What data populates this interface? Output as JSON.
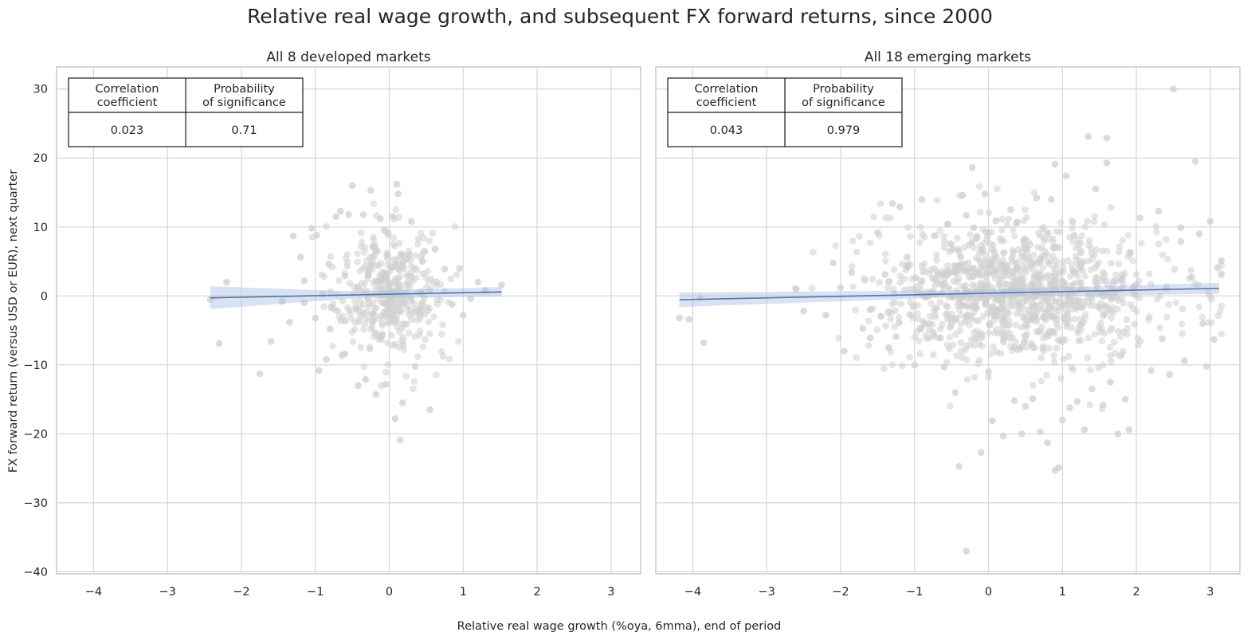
{
  "figure": {
    "title": "Relative real wage growth, and subsequent FX forward returns, since 2000",
    "xlabel": "Relative real wage growth (%oya, 6mma), end of period",
    "ylabel": "FX forward return (versus USD or EUR), next quarter"
  },
  "colors": {
    "scatter": "#cfcfcf",
    "regression": "#5875a4",
    "band": "#a9bfe2",
    "grid": "#d9d9d9",
    "frame": "#cccccc"
  },
  "chart_data": [
    {
      "type": "scatter",
      "title": "All 8 developed markets",
      "xlim": [
        -4.5,
        3.4
      ],
      "ylim": [
        -40.3,
        33.2
      ],
      "xticks": [
        "−4",
        "−3",
        "−2",
        "−1",
        "0",
        "1",
        "2",
        "3"
      ],
      "xtick_values": [
        -4,
        -3,
        -2,
        -1,
        0,
        1,
        2,
        3
      ],
      "yticks": [
        "30",
        "20",
        "10",
        "0",
        "−10",
        "−20",
        "−30",
        "−40"
      ],
      "ytick_values": [
        30,
        20,
        10,
        0,
        -10,
        -20,
        -30,
        -40
      ],
      "grid": true,
      "regression": {
        "x": [
          -2.42,
          1.52
        ],
        "y": [
          -0.28,
          0.58
        ],
        "band_low": [
          -1.9,
          -0.1
        ],
        "band_high": [
          1.4,
          1.3
        ]
      },
      "table": {
        "headers": [
          "Correlation coefficient",
          "Probability of significance"
        ],
        "values": [
          "0.023",
          "0.71"
        ]
      },
      "points": [
        [
          -2.42,
          -0.5
        ],
        [
          -2.2,
          2.0
        ],
        [
          -2.3,
          -6.9
        ],
        [
          -1.75,
          -11.3
        ],
        [
          -1.6,
          -6.6
        ],
        [
          -1.45,
          -0.8
        ],
        [
          -1.3,
          8.7
        ],
        [
          -1.2,
          5.6
        ],
        [
          -1.15,
          2.2
        ],
        [
          -1.05,
          9.8
        ],
        [
          -1.0,
          -3.2
        ],
        [
          -0.98,
          8.8
        ],
        [
          -0.95,
          -10.8
        ],
        [
          -0.85,
          -9.2
        ],
        [
          -0.82,
          4.6
        ],
        [
          -0.8,
          -4.8
        ],
        [
          -0.72,
          11.5
        ],
        [
          -0.66,
          12.3
        ],
        [
          -0.6,
          -8.4
        ],
        [
          -0.55,
          11.8
        ],
        [
          -0.5,
          16.0
        ],
        [
          -0.42,
          -13.0
        ],
        [
          -0.35,
          11.8
        ],
        [
          -0.32,
          -12.1
        ],
        [
          -0.25,
          15.3
        ],
        [
          -0.18,
          -14.3
        ],
        [
          -0.12,
          11.2
        ],
        [
          -0.05,
          -12.8
        ],
        [
          0.05,
          11.5
        ],
        [
          0.1,
          16.2
        ],
        [
          0.12,
          14.8
        ],
        [
          0.15,
          -20.9
        ],
        [
          0.18,
          -15.5
        ],
        [
          0.08,
          -17.8
        ],
        [
          0.3,
          10.8
        ],
        [
          0.35,
          -10.2
        ],
        [
          0.45,
          5.0
        ],
        [
          0.55,
          -16.5
        ],
        [
          0.62,
          6.8
        ],
        [
          0.75,
          3.9
        ],
        [
          0.85,
          -1.2
        ],
        [
          0.95,
          4.0
        ],
        [
          1.0,
          -2.8
        ],
        [
          1.1,
          -0.4
        ],
        [
          1.2,
          2.0
        ],
        [
          1.3,
          0.8
        ],
        [
          1.52,
          1.6
        ],
        [
          -1.15,
          -1.0
        ],
        [
          -0.9,
          0.3
        ],
        [
          -0.7,
          -2.2
        ],
        [
          -0.6,
          2.9
        ],
        [
          -1.35,
          -3.8
        ]
      ],
      "cluster": {
        "cx": 0.0,
        "cy": 0.3,
        "sx": 0.34,
        "sy": 4.6,
        "n": 420
      }
    },
    {
      "type": "scatter",
      "title": "All 18 emerging markets",
      "xlim": [
        -4.5,
        3.4
      ],
      "ylim": [
        -40.3,
        33.2
      ],
      "xticks": [
        "−4",
        "−3",
        "−2",
        "−1",
        "0",
        "1",
        "2",
        "3"
      ],
      "xtick_values": [
        -4,
        -3,
        -2,
        -1,
        0,
        1,
        2,
        3
      ],
      "yticks": [],
      "ytick_values": [
        30,
        20,
        10,
        0,
        -10,
        -20,
        -30,
        -40
      ],
      "grid": true,
      "regression": {
        "x": [
          -4.18,
          3.12
        ],
        "y": [
          -0.55,
          1.1
        ],
        "band_low": [
          -1.6,
          0.3
        ],
        "band_high": [
          0.5,
          1.9
        ]
      },
      "table": {
        "headers": [
          "Correlation coefficient",
          "Probability of significance"
        ],
        "values": [
          "0.043",
          "0.979"
        ]
      },
      "points": [
        [
          -4.18,
          -3.2
        ],
        [
          -4.05,
          -3.4
        ],
        [
          -3.9,
          -0.3
        ],
        [
          -3.85,
          -6.8
        ],
        [
          -2.6,
          1.0
        ],
        [
          -2.5,
          -2.2
        ],
        [
          -2.2,
          -2.8
        ],
        [
          -2.1,
          4.8
        ],
        [
          -1.85,
          3.4
        ],
        [
          -1.7,
          -4.7
        ],
        [
          -1.6,
          -6.1
        ],
        [
          -1.5,
          9.2
        ],
        [
          -1.4,
          3.1
        ],
        [
          -1.35,
          -7.5
        ],
        [
          -1.3,
          13.4
        ],
        [
          -1.2,
          12.9
        ],
        [
          -1.1,
          5.6
        ],
        [
          -1.0,
          -10.0
        ],
        [
          -0.9,
          14.0
        ],
        [
          -0.8,
          -4.0
        ],
        [
          -0.55,
          10.4
        ],
        [
          -0.45,
          -14.0
        ],
        [
          -0.4,
          6.5
        ],
        [
          -0.35,
          14.6
        ],
        [
          -0.3,
          11.7
        ],
        [
          -0.22,
          18.6
        ],
        [
          -0.3,
          -37.0
        ],
        [
          -0.4,
          -24.7
        ],
        [
          -0.2,
          9.9
        ],
        [
          -0.1,
          -22.7
        ],
        [
          -0.05,
          14.8
        ],
        [
          0.05,
          -18.1
        ],
        [
          0.1,
          10.9
        ],
        [
          0.2,
          -20.3
        ],
        [
          0.3,
          12.5
        ],
        [
          0.35,
          -15.2
        ],
        [
          0.45,
          -20.0
        ],
        [
          0.5,
          -16.0
        ],
        [
          0.6,
          -14.9
        ],
        [
          0.65,
          14.2
        ],
        [
          0.7,
          -19.7
        ],
        [
          0.8,
          -21.3
        ],
        [
          0.85,
          14.0
        ],
        [
          0.9,
          19.1
        ],
        [
          0.9,
          -25.3
        ],
        [
          0.95,
          -24.9
        ],
        [
          1.0,
          -18.0
        ],
        [
          1.05,
          17.4
        ],
        [
          1.1,
          -16.2
        ],
        [
          1.2,
          -15.3
        ],
        [
          1.3,
          -19.4
        ],
        [
          1.35,
          23.1
        ],
        [
          1.45,
          15.5
        ],
        [
          1.6,
          22.9
        ],
        [
          1.6,
          19.3
        ],
        [
          1.55,
          -15.8
        ],
        [
          1.65,
          -12.5
        ],
        [
          1.75,
          -20.0
        ],
        [
          1.85,
          -15.0
        ],
        [
          1.9,
          -19.4
        ],
        [
          2.05,
          11.3
        ],
        [
          2.2,
          -10.8
        ],
        [
          2.3,
          12.3
        ],
        [
          2.45,
          -11.4
        ],
        [
          2.5,
          30.0
        ],
        [
          2.6,
          7.9
        ],
        [
          2.6,
          9.9
        ],
        [
          2.65,
          -9.4
        ],
        [
          2.8,
          19.5
        ],
        [
          2.85,
          9.0
        ],
        [
          2.95,
          -10.2
        ],
        [
          3.0,
          10.8
        ],
        [
          3.05,
          -6.3
        ],
        [
          3.1,
          4.1
        ],
        [
          3.15,
          5.1
        ],
        [
          3.0,
          0.0
        ],
        [
          2.9,
          -4.0
        ],
        [
          2.75,
          2.7
        ],
        [
          -1.6,
          -2.0
        ],
        [
          -1.95,
          -8.0
        ],
        [
          -0.6,
          -10.3
        ],
        [
          0.0,
          -11.0
        ],
        [
          1.4,
          -13.5
        ],
        [
          2.35,
          -6.2
        ],
        [
          -2.0,
          1.2
        ],
        [
          -1.25,
          -5.9
        ],
        [
          -0.75,
          2.5
        ],
        [
          -0.65,
          -6.1
        ]
      ],
      "cluster": {
        "cx": 0.45,
        "cy": 0.5,
        "sx": 0.95,
        "sy": 4.8,
        "n": 1150
      }
    }
  ]
}
